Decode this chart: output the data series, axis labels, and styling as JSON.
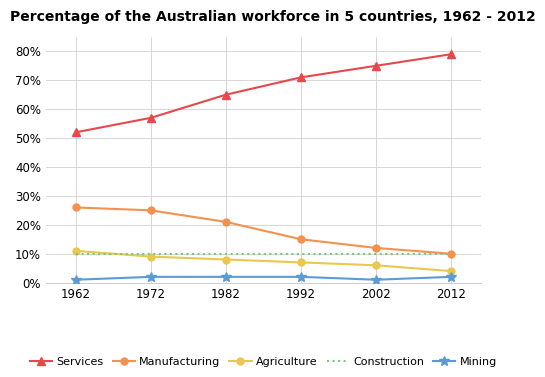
{
  "title": "Percentage of the Australian workforce in 5 countries, 1962 - 2012",
  "years": [
    1962,
    1972,
    1982,
    1992,
    2002,
    2012
  ],
  "series": [
    {
      "label": "Services",
      "color": "#e8474c",
      "linestyle": "-",
      "marker": "^",
      "markersize": 6,
      "values": [
        52,
        57,
        65,
        71,
        75,
        79
      ]
    },
    {
      "label": "Manufacturing",
      "color": "#f4914e",
      "linestyle": "-",
      "marker": "o",
      "markersize": 5,
      "values": [
        26,
        25,
        21,
        15,
        12,
        10
      ]
    },
    {
      "label": "Agriculture",
      "color": "#e8c84e",
      "linestyle": "-",
      "marker": "o",
      "markersize": 5,
      "values": [
        11,
        9,
        8,
        7,
        6,
        4
      ]
    },
    {
      "label": "Construction",
      "color": "#7bc67e",
      "linestyle": ":",
      "marker": null,
      "markersize": 0,
      "values": [
        10,
        10,
        10,
        10,
        10,
        10
      ]
    },
    {
      "label": "Mining",
      "color": "#5b9bd5",
      "linestyle": "-",
      "marker": "*",
      "markersize": 7,
      "values": [
        1,
        2,
        2,
        2,
        1,
        2
      ]
    }
  ],
  "ylim": [
    0,
    85
  ],
  "yticks": [
    0,
    10,
    20,
    30,
    40,
    50,
    60,
    70,
    80
  ],
  "background_color": "#ffffff",
  "grid_color": "#d0d0d0",
  "title_fontsize": 10,
  "axis_fontsize": 8.5,
  "legend_fontsize": 8
}
